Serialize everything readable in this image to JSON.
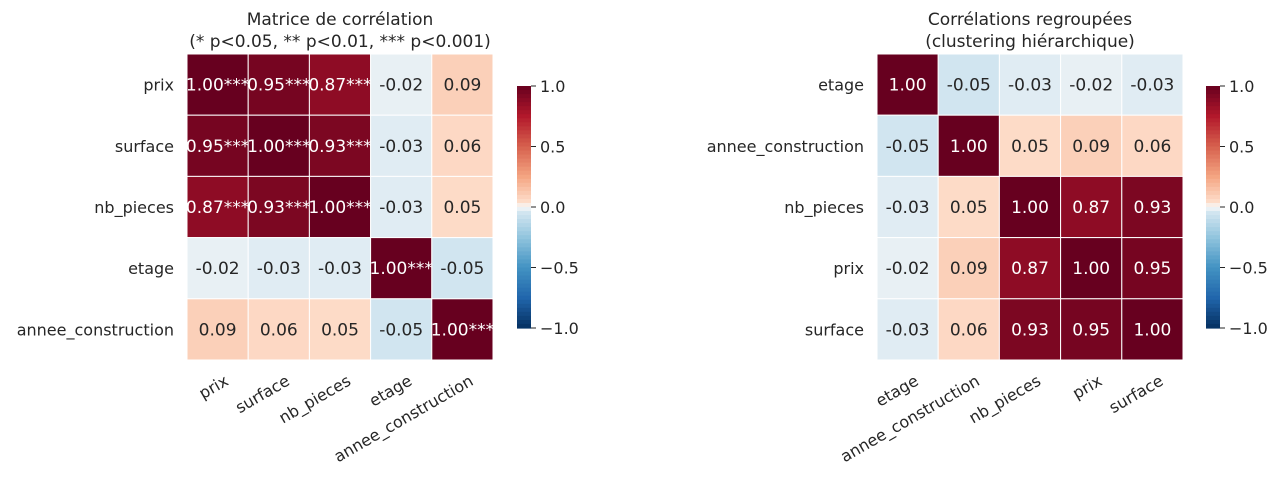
{
  "chart_data": [
    {
      "type": "heatmap",
      "title": "Matrice de corrélation",
      "subtitle": "(* p<0.05, ** p<0.01, *** p<0.001)",
      "rows": [
        "prix",
        "surface",
        "nb_pieces",
        "etage",
        "annee_construction"
      ],
      "columns": [
        "prix",
        "surface",
        "nb_pieces",
        "etage",
        "annee_construction"
      ],
      "values": [
        [
          1.0,
          0.95,
          0.87,
          -0.02,
          0.09
        ],
        [
          0.95,
          1.0,
          0.93,
          -0.03,
          0.06
        ],
        [
          0.87,
          0.93,
          1.0,
          -0.03,
          0.05
        ],
        [
          -0.02,
          -0.03,
          -0.03,
          1.0,
          -0.05
        ],
        [
          0.09,
          0.06,
          0.05,
          -0.05,
          1.0
        ]
      ],
      "cell_labels": [
        [
          "1.00***",
          "0.95***",
          "0.87***",
          "-0.02",
          "0.09"
        ],
        [
          "0.95***",
          "1.00***",
          "0.93***",
          "-0.03",
          "0.06"
        ],
        [
          "0.87***",
          "0.93***",
          "1.00***",
          "-0.03",
          "0.05"
        ],
        [
          "-0.02",
          "-0.03",
          "-0.03",
          "1.00***",
          "-0.05"
        ],
        [
          "0.09",
          "0.06",
          "0.05",
          "-0.05",
          "1.00***"
        ]
      ],
      "colorbar": {
        "range": [
          -1,
          1
        ],
        "ticks": [
          1.0,
          0.5,
          0.0,
          -0.5,
          -1.0
        ],
        "tick_labels": [
          "1.0",
          "0.5",
          "0.0",
          "−0.5",
          "−1.0"
        ]
      },
      "colormap": "RdBu_r"
    },
    {
      "type": "heatmap",
      "title": "Corrélations regroupées",
      "subtitle": "(clustering hiérarchique)",
      "rows": [
        "etage",
        "annee_construction",
        "nb_pieces",
        "prix",
        "surface"
      ],
      "columns": [
        "etage",
        "annee_construction",
        "nb_pieces",
        "prix",
        "surface"
      ],
      "values": [
        [
          1.0,
          -0.05,
          -0.03,
          -0.02,
          -0.03
        ],
        [
          -0.05,
          1.0,
          0.05,
          0.09,
          0.06
        ],
        [
          -0.03,
          0.05,
          1.0,
          0.87,
          0.93
        ],
        [
          -0.02,
          0.09,
          0.87,
          1.0,
          0.95
        ],
        [
          -0.03,
          0.06,
          0.93,
          0.95,
          1.0
        ]
      ],
      "cell_labels": [
        [
          "1.00",
          "-0.05",
          "-0.03",
          "-0.02",
          "-0.03"
        ],
        [
          "-0.05",
          "1.00",
          "0.05",
          "0.09",
          "0.06"
        ],
        [
          "-0.03",
          "0.05",
          "1.00",
          "0.87",
          "0.93"
        ],
        [
          "-0.02",
          "0.09",
          "0.87",
          "1.00",
          "0.95"
        ],
        [
          "-0.03",
          "0.06",
          "0.93",
          "0.95",
          "1.00"
        ]
      ],
      "colorbar": {
        "range": [
          -1,
          1
        ],
        "ticks": [
          1.0,
          0.5,
          0.0,
          -0.5,
          -1.0
        ],
        "tick_labels": [
          "1.0",
          "0.5",
          "0.0",
          "−0.5",
          "−1.0"
        ]
      },
      "colormap": "RdBu_r"
    }
  ]
}
